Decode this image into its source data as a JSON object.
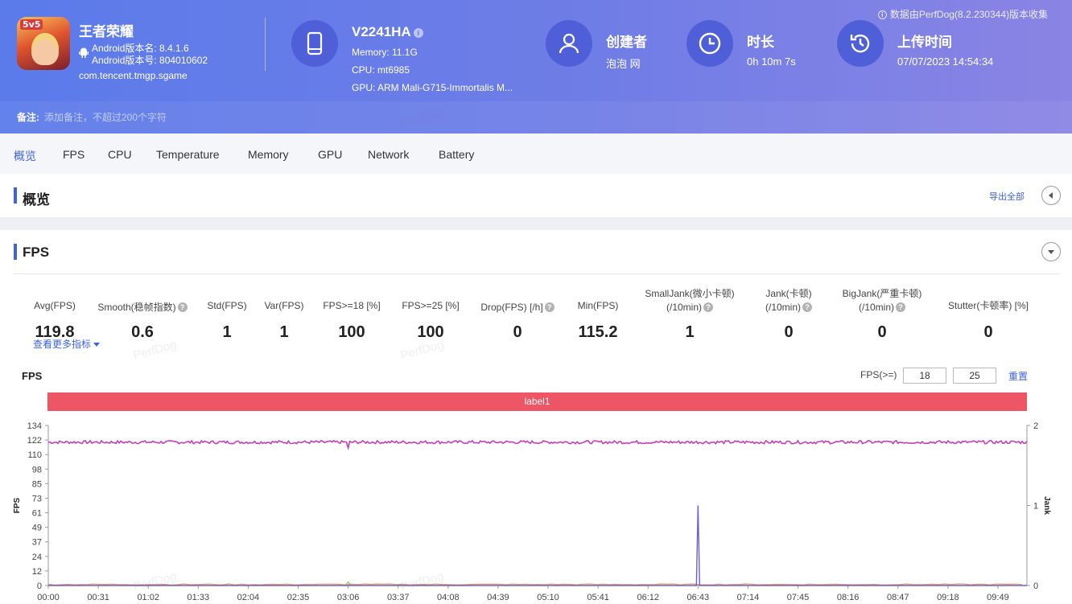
{
  "app": {
    "name": "王者荣耀",
    "badge": "5v5",
    "version_name": "Android版本名: 8.4.1.6",
    "version_code": "Android版本号: 804010602",
    "package": "com.tencent.tmgp.sgame"
  },
  "device": {
    "model": "V2241HA",
    "memory": "Memory: 11.1G",
    "cpu": "CPU: mt6985",
    "gpu": "GPU: ARM Mali-G715-Immortalis M..."
  },
  "creator": {
    "label": "创建者",
    "value": "泡泡 网"
  },
  "duration": {
    "label": "时长",
    "value": "0h 10m 7s"
  },
  "upload": {
    "label": "上传时间",
    "value": "07/07/2023 14:54:34"
  },
  "source_note": "数据由PerfDog(8.2.230344)版本收集",
  "remark": {
    "label": "备注:",
    "placeholder": "添加备注，不超过200个字符"
  },
  "tabs": [
    "概览",
    "FPS",
    "CPU",
    "Temperature",
    "Memory",
    "GPU",
    "Network",
    "Battery"
  ],
  "overview": {
    "title": "概览",
    "export": "导出全部"
  },
  "fps_section": {
    "title": "FPS",
    "more": "查看更多指标"
  },
  "metrics": [
    {
      "label": "Avg(FPS)",
      "value": "119.8",
      "help": false
    },
    {
      "label": "Smooth(稳帧指数)",
      "value": "0.6",
      "help": true
    },
    {
      "label": "Std(FPS)",
      "value": "1",
      "help": false
    },
    {
      "label": "Var(FPS)",
      "value": "1",
      "help": false
    },
    {
      "label": "FPS>=18 [%]",
      "value": "100",
      "help": false
    },
    {
      "label": "FPS>=25 [%]",
      "value": "100",
      "help": false
    },
    {
      "label": "Drop(FPS) [/h]",
      "value": "0",
      "help": true
    },
    {
      "label": "Min(FPS)",
      "value": "115.2",
      "help": false
    },
    {
      "label": "SmallJank(微小卡顿)",
      "label2": "(/10min)",
      "value": "1",
      "help": true
    },
    {
      "label": "Jank(卡顿)",
      "label2": "(/10min)",
      "value": "0",
      "help": true
    },
    {
      "label": "BigJank(严重卡顿)",
      "label2": "(/10min)",
      "value": "0",
      "help": true
    },
    {
      "label": "Stutter(卡顿率) [%]",
      "value": "0",
      "help": false
    }
  ],
  "threshold": {
    "label": "FPS(>=)",
    "value1": "18",
    "value2": "25",
    "reset": "重置"
  },
  "label_bar": "label1",
  "watermark": "PerfDog",
  "colors": {
    "accent": "#3e63dd",
    "fps_line": "#c33fb9",
    "jank_line": "#6a5ee0",
    "label_bar": "#ee5565"
  },
  "chart_data": {
    "type": "line",
    "title": "FPS",
    "ylabel": "FPS",
    "y2label": "Jank",
    "ylim": [
      0,
      134
    ],
    "y2lim": [
      0,
      2
    ],
    "yticks": [
      "134",
      "122",
      "110",
      "98",
      "85",
      "73",
      "61",
      "49",
      "37",
      "24",
      "12",
      "0"
    ],
    "y2ticks": [
      "2",
      "1",
      "0"
    ],
    "xticks": [
      "00:00",
      "00:31",
      "01:02",
      "01:33",
      "02:04",
      "02:35",
      "03:06",
      "03:37",
      "04:08",
      "04:39",
      "05:10",
      "05:41",
      "06:12",
      "06:43",
      "07:14",
      "07:45",
      "08:16",
      "08:47",
      "09:18",
      "09:49"
    ],
    "x_range_seconds": [
      0,
      607
    ],
    "series": [
      {
        "name": "FPS",
        "axis": "left",
        "baseline": 120,
        "min": 115.2,
        "min_at": "03:06"
      },
      {
        "name": "Jank",
        "axis": "right",
        "events": [
          {
            "x": "06:43",
            "y": 1
          }
        ]
      },
      {
        "name": "FPS>=18",
        "axis": "left",
        "approx_value": 0.5
      }
    ]
  }
}
